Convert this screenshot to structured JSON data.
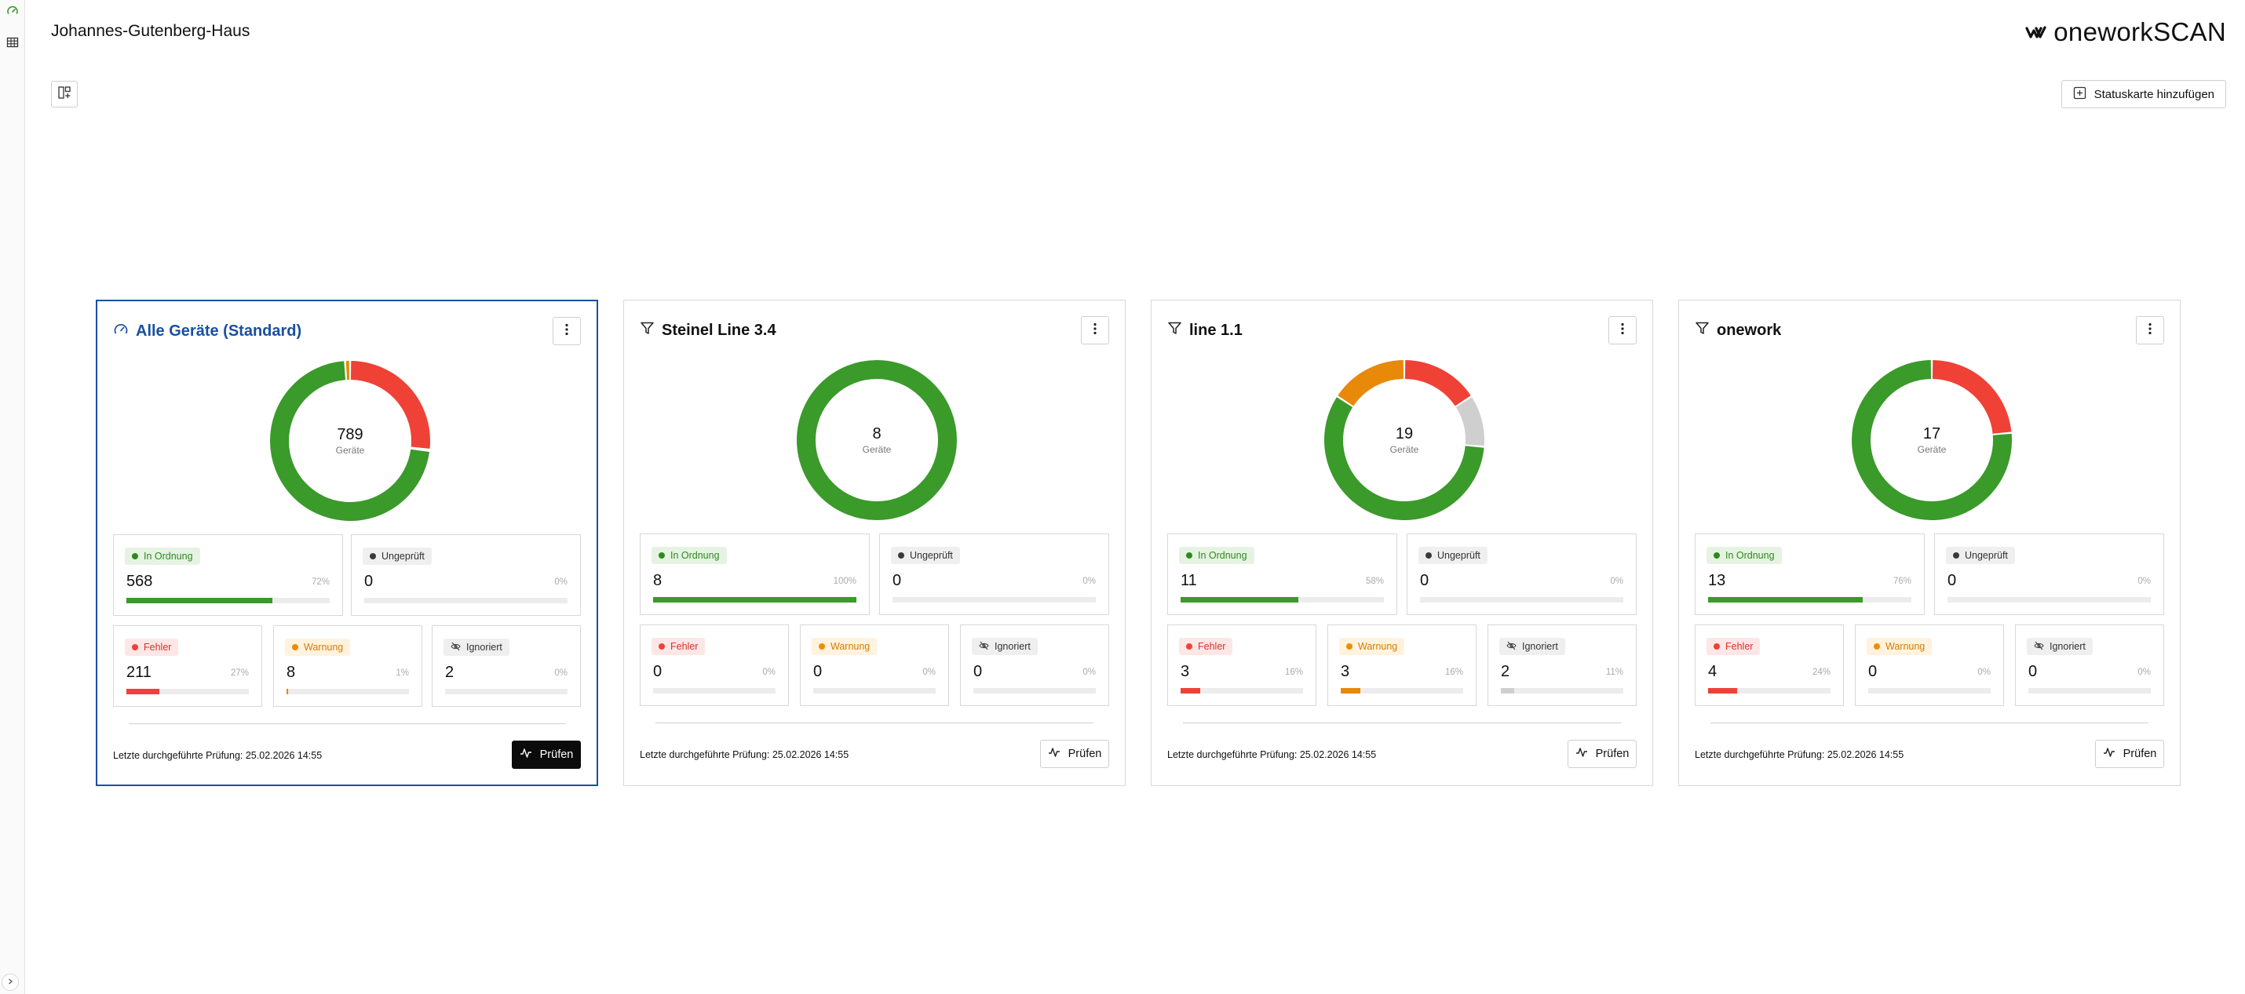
{
  "header": {
    "title": "Johannes-Gutenberg-Haus",
    "logo_text": "onework",
    "logo_text_accent": "SCAN",
    "add_card_label": "Statuskarte hinzufügen"
  },
  "colors": {
    "ok": "#3a9a2a",
    "unchecked": "#cfcfcf",
    "error": "#ef4136",
    "warning": "#e8890a",
    "ignored": "#cfcfcf",
    "selected_border": "#1a4fa0"
  },
  "labels": {
    "devices": "Geräte",
    "ok": "In Ordnung",
    "unchecked": "Ungeprüft",
    "error": "Fehler",
    "warning": "Warnung",
    "ignored": "Ignoriert",
    "check": "Prüfen"
  },
  "cards": [
    {
      "title": "Alle Geräte (Standard)",
      "icon": "gauge-icon",
      "total": "789",
      "ok": {
        "count": "568",
        "pct": "72%",
        "fraction": 0.72
      },
      "unchecked": {
        "count": "0",
        "pct": "0%",
        "fraction": 0
      },
      "error": {
        "count": "211",
        "pct": "27%",
        "fraction": 0.27
      },
      "warning": {
        "count": "8",
        "pct": "1%",
        "fraction": 0.01
      },
      "ignored": {
        "count": "2",
        "pct": "0%",
        "fraction": 0
      },
      "last_check": "Letzte durchgeführte Prüfung: 25.02.2026 14:55"
    },
    {
      "title": "Steinel Line 3.4",
      "icon": "filter-icon",
      "total": "8",
      "ok": {
        "count": "8",
        "pct": "100%",
        "fraction": 1
      },
      "unchecked": {
        "count": "0",
        "pct": "0%",
        "fraction": 0
      },
      "error": {
        "count": "0",
        "pct": "0%",
        "fraction": 0
      },
      "warning": {
        "count": "0",
        "pct": "0%",
        "fraction": 0
      },
      "ignored": {
        "count": "0",
        "pct": "0%",
        "fraction": 0
      },
      "last_check": "Letzte durchgeführte Prüfung: 25.02.2026 14:55"
    },
    {
      "title": "line 1.1",
      "icon": "filter-icon",
      "total": "19",
      "ok": {
        "count": "11",
        "pct": "58%",
        "fraction": 0.58
      },
      "unchecked": {
        "count": "0",
        "pct": "0%",
        "fraction": 0
      },
      "error": {
        "count": "3",
        "pct": "16%",
        "fraction": 0.16
      },
      "warning": {
        "count": "3",
        "pct": "16%",
        "fraction": 0.16
      },
      "ignored": {
        "count": "2",
        "pct": "11%",
        "fraction": 0.11
      },
      "last_check": "Letzte durchgeführte Prüfung: 25.02.2026 14:55"
    },
    {
      "title": "onework",
      "icon": "filter-icon",
      "total": "17",
      "ok": {
        "count": "13",
        "pct": "76%",
        "fraction": 0.76
      },
      "unchecked": {
        "count": "0",
        "pct": "0%",
        "fraction": 0
      },
      "error": {
        "count": "4",
        "pct": "24%",
        "fraction": 0.24
      },
      "warning": {
        "count": "0",
        "pct": "0%",
        "fraction": 0
      },
      "ignored": {
        "count": "0",
        "pct": "0%",
        "fraction": 0
      },
      "last_check": "Letzte durchgeführte Prüfung: 25.02.2026 14:55"
    }
  ]
}
